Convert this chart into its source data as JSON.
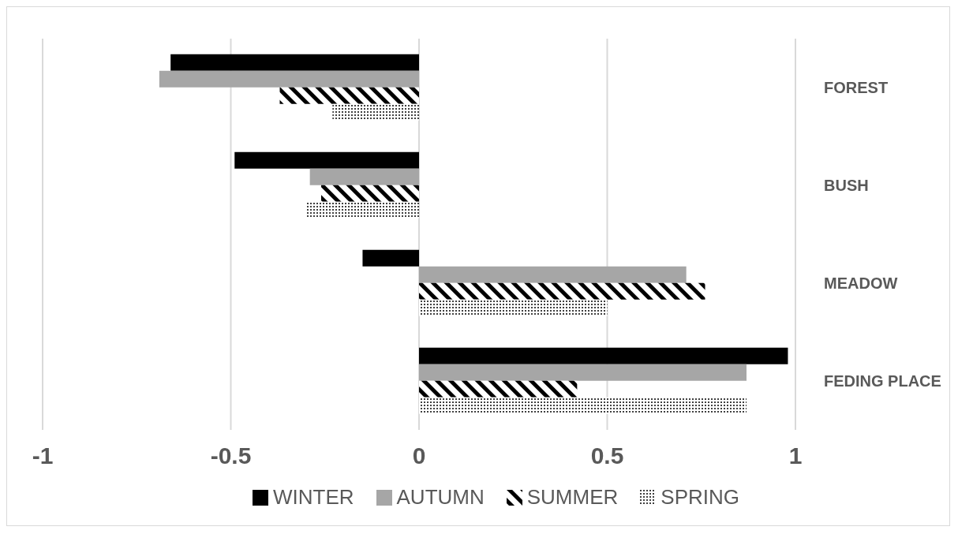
{
  "chart_data": {
    "type": "bar",
    "orientation": "horizontal",
    "categories": [
      "FOREST",
      "BUSH",
      "MEADOW",
      "FEDING PLACE"
    ],
    "series": [
      {
        "name": "WINTER",
        "color": "#000000",
        "values": [
          -0.66,
          -0.49,
          -0.15,
          0.98
        ]
      },
      {
        "name": "AUTUMN",
        "color": "#a6a6a6",
        "values": [
          -0.69,
          -0.29,
          0.71,
          0.87
        ]
      },
      {
        "name": "SUMMER",
        "color": "#000000",
        "values": [
          -0.37,
          -0.26,
          0.76,
          0.42
        ]
      },
      {
        "name": "SPRING",
        "color": "#404040",
        "values": [
          -0.23,
          -0.3,
          0.5,
          0.87
        ]
      }
    ],
    "xlim": [
      -1,
      1
    ],
    "xticks": [
      -1,
      -0.5,
      0,
      0.5,
      1
    ],
    "grid": "x",
    "legend": "bottom"
  }
}
